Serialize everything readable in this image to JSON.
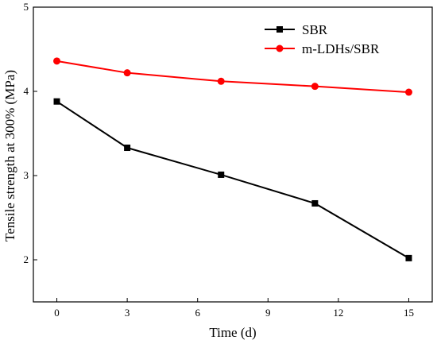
{
  "chart_data": {
    "type": "line",
    "xlabel": "Time  (d)",
    "ylabel": "Tensile strength at 300% (MPa)",
    "xlim": [
      -1,
      16
    ],
    "ylim": [
      1.5,
      5
    ],
    "xticks": [
      0,
      3,
      6,
      9,
      12,
      15
    ],
    "yticks": [
      2,
      3,
      4,
      5
    ],
    "x": [
      0,
      3,
      7,
      11,
      15
    ],
    "series": [
      {
        "name": "SBR",
        "color": "#000000",
        "marker": "square",
        "values": [
          3.88,
          3.33,
          3.01,
          2.67,
          2.02
        ]
      },
      {
        "name": "m-LDHs/SBR",
        "color": "#ff0000",
        "marker": "circle",
        "values": [
          4.36,
          4.22,
          4.12,
          4.06,
          3.99
        ]
      }
    ],
    "legend_position": "top-right",
    "grid": false
  }
}
